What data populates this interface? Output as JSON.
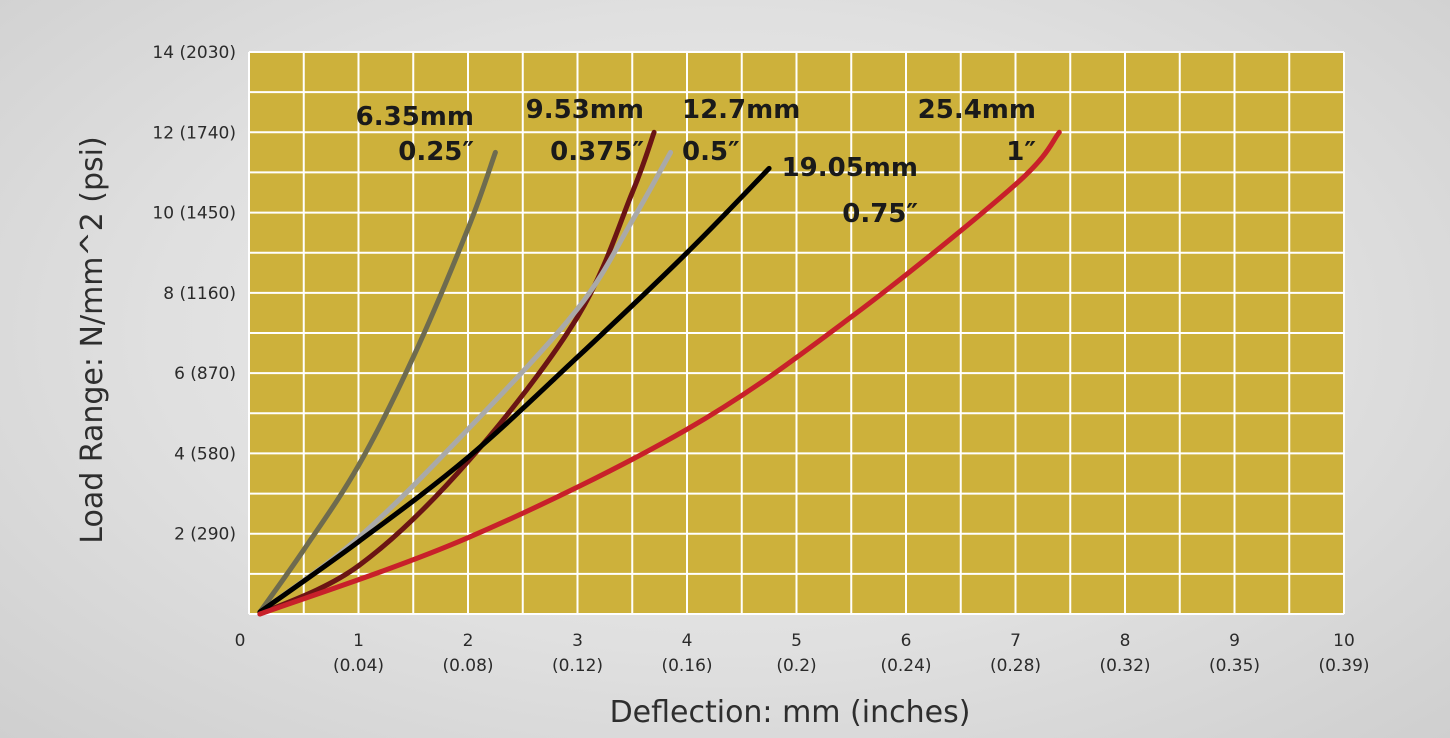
{
  "chart_data": {
    "type": "line",
    "xlabel": "Deflection: mm (inches)",
    "ylabel": "Load Range:  N/mm^2 (psi)",
    "xlim": [
      0,
      10
    ],
    "ylim": [
      0,
      14
    ],
    "grid": true,
    "x_minor_step": 0.5,
    "y_minor_step": 1,
    "x_ticks": [
      {
        "value": 0,
        "mm": "0",
        "in": ""
      },
      {
        "value": 1,
        "mm": "1",
        "in": "(0.04)"
      },
      {
        "value": 2,
        "mm": "2",
        "in": "(0.08)"
      },
      {
        "value": 3,
        "mm": "3",
        "in": "(0.12)"
      },
      {
        "value": 4,
        "mm": "4",
        "in": "(0.16)"
      },
      {
        "value": 5,
        "mm": "5",
        "in": "(0.2)"
      },
      {
        "value": 6,
        "mm": "6",
        "in": "(0.24)"
      },
      {
        "value": 7,
        "mm": "7",
        "in": "(0.28)"
      },
      {
        "value": 8,
        "mm": "8",
        "in": "(0.32)"
      },
      {
        "value": 9,
        "mm": "9",
        "in": "(0.35)"
      },
      {
        "value": 10,
        "mm": "10",
        "in": "(0.39)"
      }
    ],
    "y_ticks": [
      {
        "value": 2,
        "label": "2 (290)"
      },
      {
        "value": 4,
        "label": "4 (580)"
      },
      {
        "value": 6,
        "label": "6 (870)"
      },
      {
        "value": 8,
        "label": "8 (1160)"
      },
      {
        "value": 10,
        "label": "10 (1450)"
      },
      {
        "value": 12,
        "label": "12 (1740)"
      },
      {
        "value": 14,
        "label": "14 (2030)"
      }
    ],
    "series": [
      {
        "name_mm": "6.35mm",
        "name_in": "0.25″",
        "color": "#6e6b4f",
        "x": [
          0.1,
          0.5,
          1.0,
          1.5,
          2.0,
          2.25
        ],
        "y": [
          0.05,
          1.6,
          3.7,
          6.4,
          9.6,
          11.5
        ]
      },
      {
        "name_mm": "9.53mm",
        "name_in": "0.375″",
        "color": "#6b1414",
        "x": [
          0.1,
          1.0,
          2.0,
          3.0,
          3.5,
          3.7
        ],
        "y": [
          0.0,
          1.2,
          3.8,
          7.4,
          10.5,
          12.0
        ]
      },
      {
        "name_mm": "12.7mm",
        "name_in": "0.5″",
        "color": "#a9a9a9",
        "x": [
          0.1,
          1.0,
          2.0,
          3.0,
          3.5,
          3.85
        ],
        "y": [
          0.05,
          1.9,
          4.6,
          7.6,
          9.8,
          11.5
        ]
      },
      {
        "name_mm": "19.05mm",
        "name_in": "0.75″",
        "color": "#000000",
        "x": [
          0.1,
          1.0,
          2.0,
          3.0,
          4.0,
          4.75
        ],
        "y": [
          0.05,
          1.8,
          3.9,
          6.4,
          9.0,
          11.1
        ]
      },
      {
        "name_mm": "25.4mm",
        "name_in": "1″",
        "color": "#c8202a",
        "x": [
          0.1,
          2.0,
          4.0,
          5.5,
          7.0,
          7.4
        ],
        "y": [
          0.0,
          1.9,
          4.6,
          7.4,
          10.7,
          12.0
        ]
      }
    ]
  }
}
